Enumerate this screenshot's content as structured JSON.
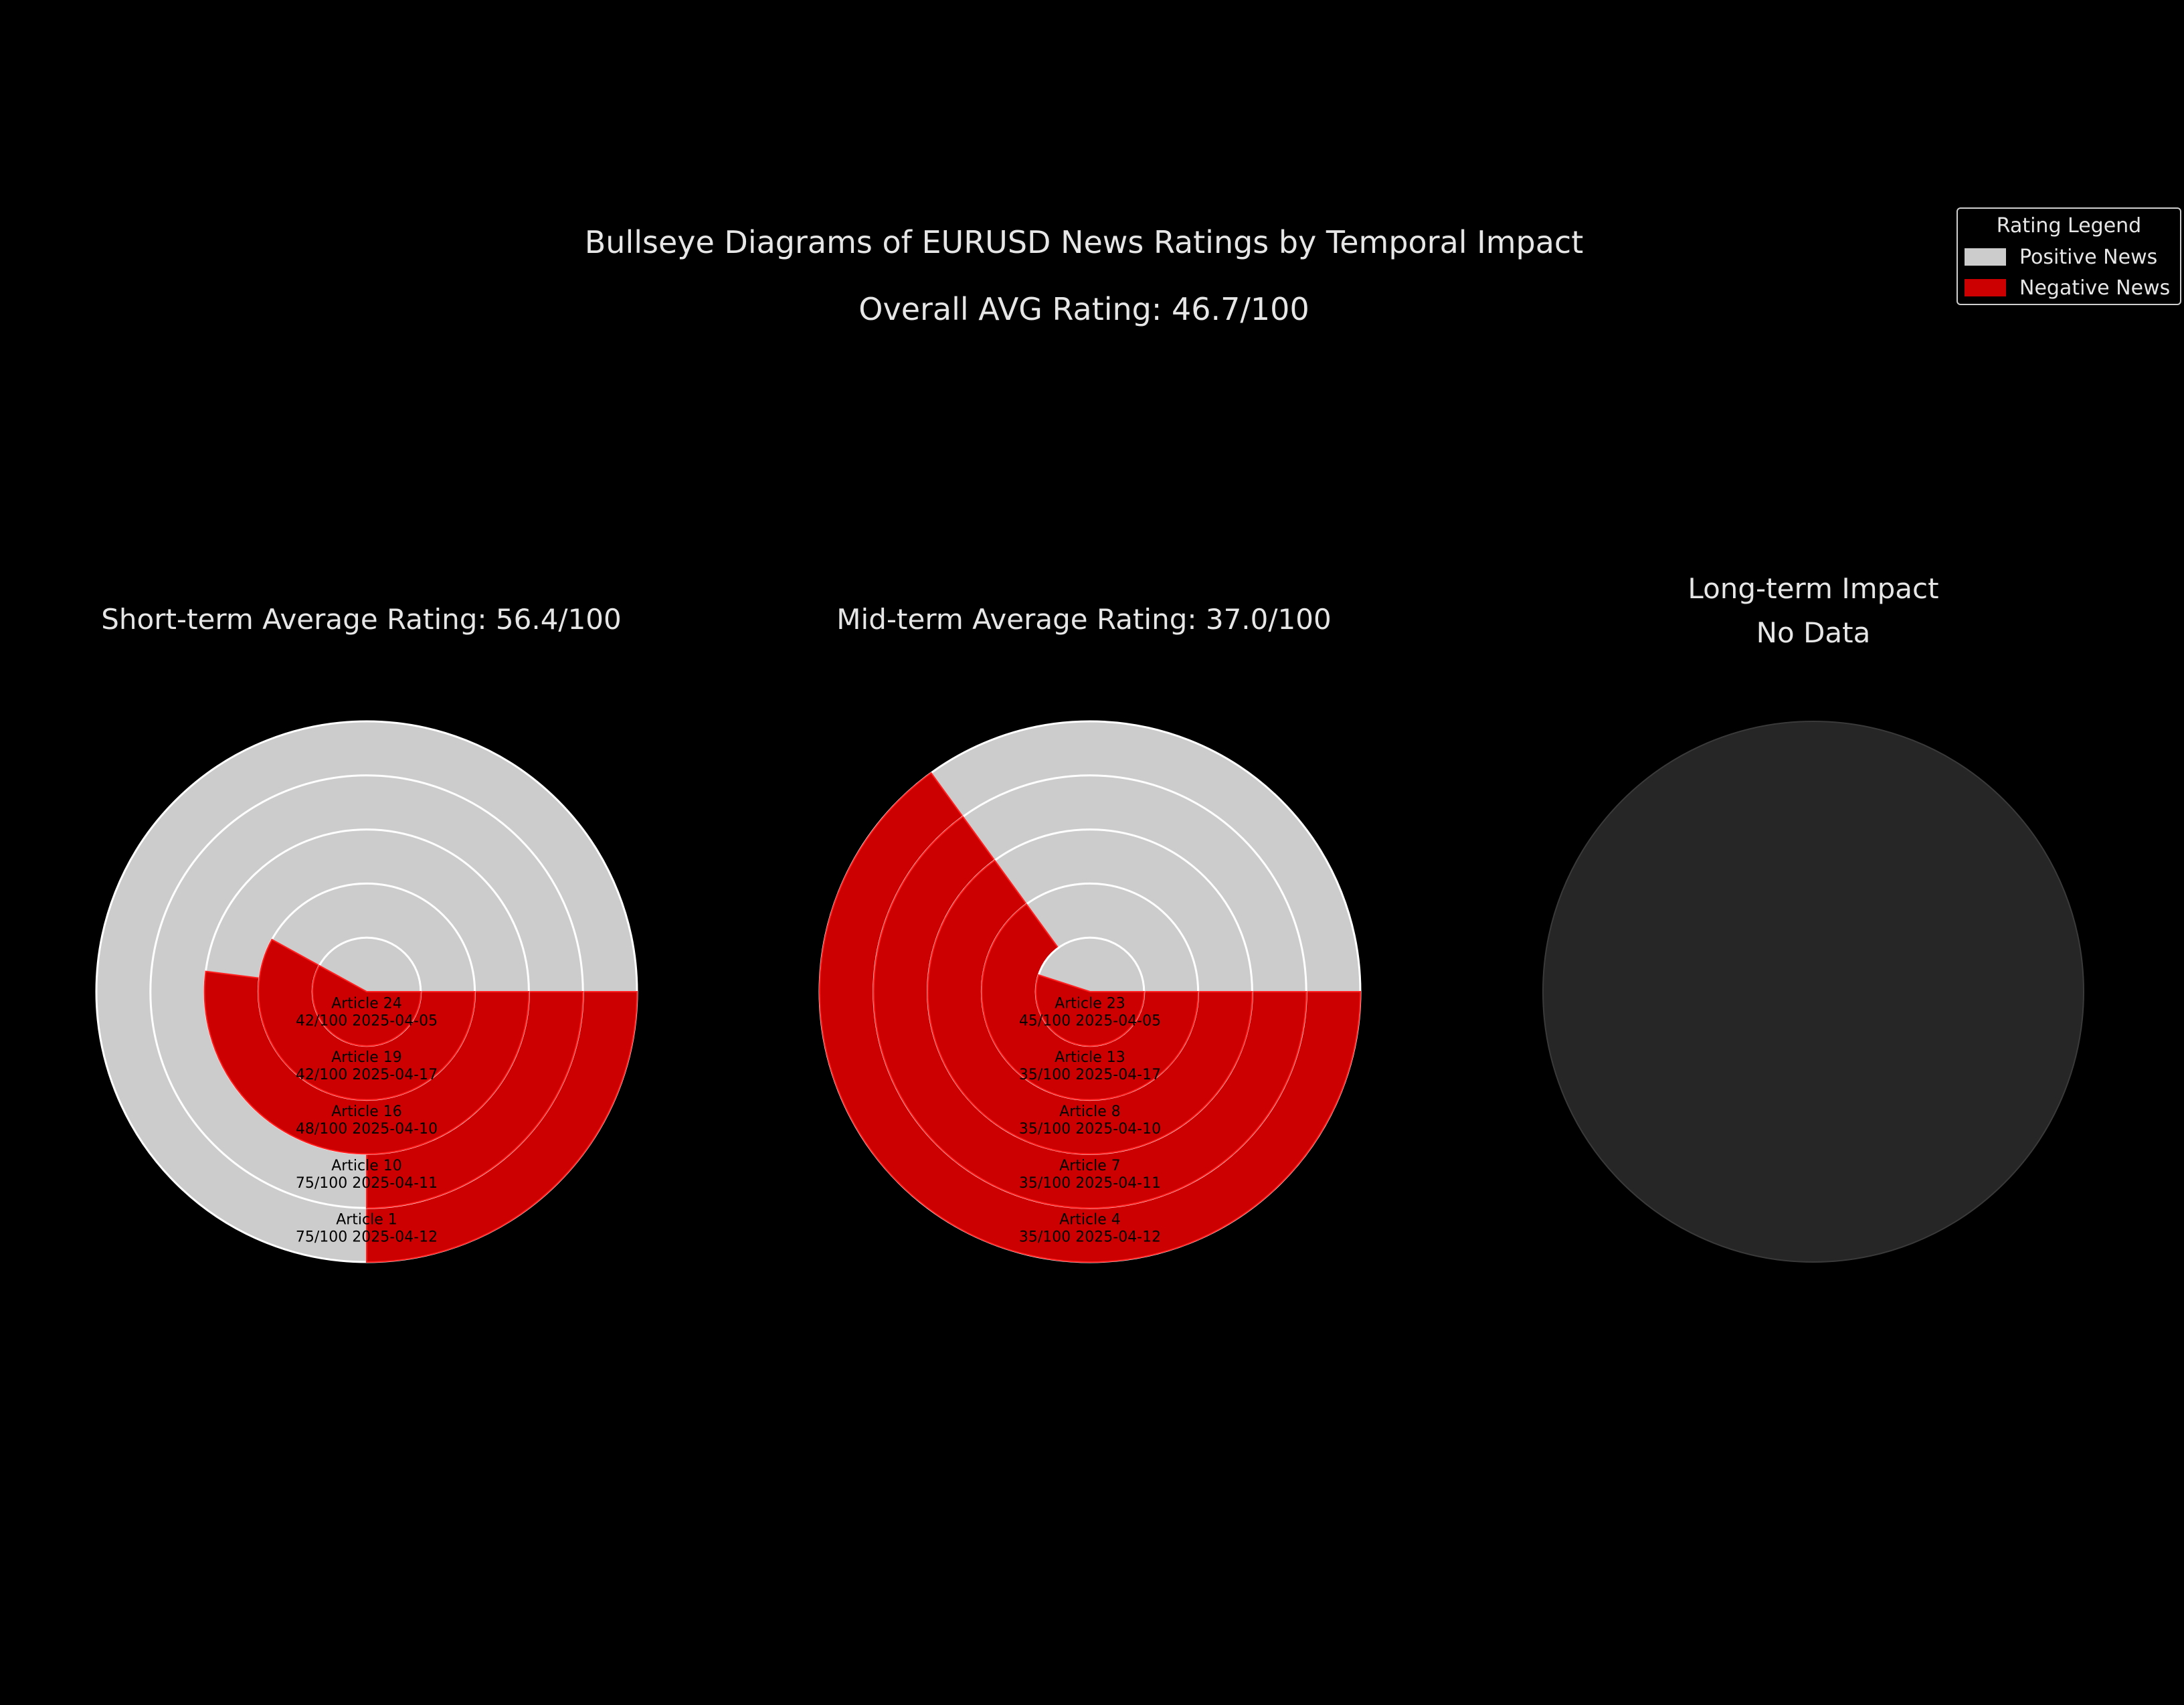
{
  "title": "Bullseye Diagrams of EURUSD News Ratings by Temporal Impact",
  "subtitle": "Overall AVG Rating: 46.7/100",
  "legend": {
    "title": "Rating Legend",
    "items": [
      {
        "label": "Positive News",
        "color": "#cccccc"
      },
      {
        "label": "Negative News",
        "color": "#cc0000"
      }
    ]
  },
  "colors": {
    "background": "#000000",
    "positive": "#cccccc",
    "negative": "#cc0000",
    "empty": "#262626"
  },
  "chart_data": [
    {
      "type": "bullseye",
      "title": "Short-term Average Rating: 56.4/100",
      "rings": [
        {
          "article": "Article 24",
          "label": "42/100 2025-04-05",
          "rating": 42
        },
        {
          "article": "Article 19",
          "label": "42/100 2025-04-17",
          "rating": 42
        },
        {
          "article": "Article 16",
          "label": "48/100 2025-04-10",
          "rating": 48
        },
        {
          "article": "Article 10",
          "label": "75/100 2025-04-11",
          "rating": 75
        },
        {
          "article": "Article 1",
          "label": "75/100 2025-04-12",
          "rating": 75
        }
      ]
    },
    {
      "type": "bullseye",
      "title": "Mid-term Average Rating: 37.0/100",
      "rings": [
        {
          "article": "Article 23",
          "label": "45/100 2025-04-05",
          "rating": 45
        },
        {
          "article": "Article 13",
          "label": "35/100 2025-04-17",
          "rating": 35
        },
        {
          "article": "Article 8",
          "label": "35/100 2025-04-10",
          "rating": 35
        },
        {
          "article": "Article 7",
          "label": "35/100 2025-04-11",
          "rating": 35
        },
        {
          "article": "Article 4",
          "label": "35/100 2025-04-12",
          "rating": 35
        }
      ]
    },
    {
      "type": "bullseye",
      "title": "Long-term Impact\nNo Data",
      "rings": []
    }
  ]
}
